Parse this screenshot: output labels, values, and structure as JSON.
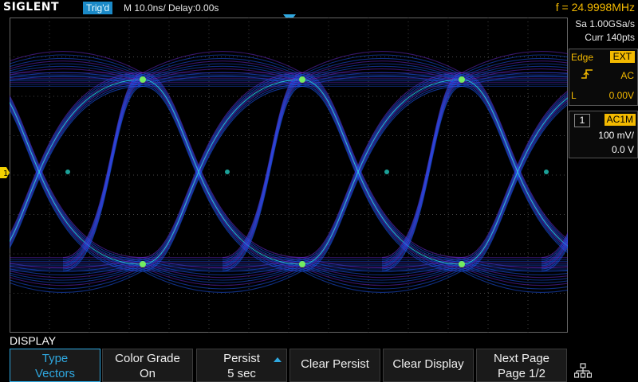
{
  "header": {
    "brand": "SIGLENT",
    "trigger_status": "Trig'd",
    "timebase": "M 10.0ns/  Delay:0.00s",
    "frequency": "f = 24.9998MHz"
  },
  "acquisition": {
    "sample_rate": "Sa 1.00GSa/s",
    "memory": "Curr 140pts"
  },
  "trigger_panel": {
    "type": "Edge",
    "source": "EXT",
    "slope_icon": "rising-edge-icon",
    "coupling": "AC",
    "level_label": "L",
    "level": "0.00V"
  },
  "channel_panel": {
    "channel": "1",
    "coupling": "AC1M",
    "scale": "100 mV/",
    "offset": "0.0 V"
  },
  "waveform": {
    "channel_marker": "1",
    "colors": {
      "core": "#1e5bff",
      "hot": "#27e6d8",
      "cool": "#6b2bd6",
      "peak": "#7dff5a"
    },
    "display_type": "eye-diagram"
  },
  "menu": {
    "title": "DISPLAY",
    "softkeys": [
      {
        "line1": "Type",
        "line2": "Vectors"
      },
      {
        "line1": "Color Grade",
        "line2": "On"
      },
      {
        "line1": "Persist",
        "line2": "5 sec"
      },
      {
        "line1": "Clear Persist",
        "line2": ""
      },
      {
        "line1": "Clear Display",
        "line2": ""
      },
      {
        "line1": "Next Page",
        "line2": "Page 1/2"
      }
    ],
    "network_icon": "network-icon"
  },
  "colors": {
    "accent": "#2fa8e0",
    "trigger": "#f3b900",
    "background": "#000000"
  }
}
